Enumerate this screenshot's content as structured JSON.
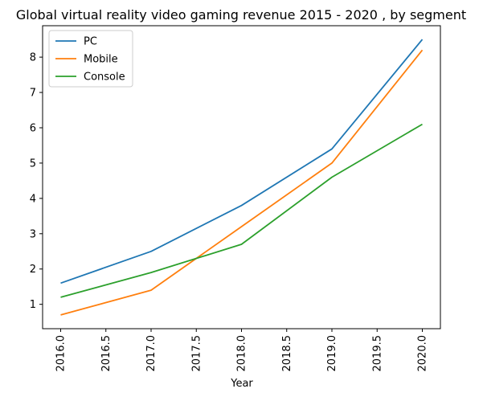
{
  "chart_data": {
    "type": "line",
    "title": "Global virtual reality video gaming revenue 2015 - 2020 , by segment",
    "xlabel": "Year",
    "ylabel": "",
    "x": [
      2016,
      2017,
      2018,
      2019,
      2020
    ],
    "xlim": [
      2015.8,
      2020.2
    ],
    "ylim": [
      0.31,
      8.89
    ],
    "xticks": [
      "2016.0",
      "2016.5",
      "2017.0",
      "2017.5",
      "2018.0",
      "2018.5",
      "2019.0",
      "2019.5",
      "2020.0"
    ],
    "yticks": [
      "1",
      "2",
      "3",
      "4",
      "5",
      "6",
      "7",
      "8"
    ],
    "grid": false,
    "legend_position": "top-left",
    "series": [
      {
        "name": "PC",
        "color": "#1f77b4",
        "values": [
          1.6,
          2.5,
          3.8,
          5.4,
          8.5
        ]
      },
      {
        "name": "Mobile",
        "color": "#ff7f0e",
        "values": [
          0.7,
          1.4,
          3.2,
          5.0,
          8.2
        ]
      },
      {
        "name": "Console",
        "color": "#2ca02c",
        "values": [
          1.2,
          1.9,
          2.7,
          4.6,
          6.1
        ]
      }
    ]
  }
}
